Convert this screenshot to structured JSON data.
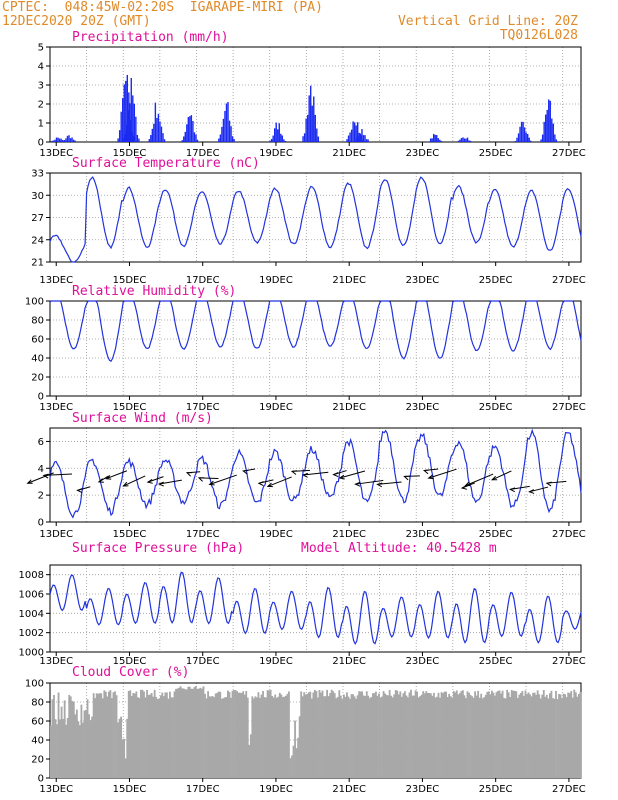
{
  "header": {
    "line1_left": "CPTEC:  048:45W-02:20S  IGARAPE-MIRI (PA)",
    "line2_left": "12DEC2020 20Z (GMT)",
    "line1_right": "Vertical Grid Line: 20Z",
    "line2_right": "TQ0126L028"
  },
  "colors": {
    "header": "#e08a2a",
    "title": "#e0109a",
    "line": "#2233dd",
    "bar": "#1a2af0",
    "cloud": "#a8a8a8"
  },
  "x_tick_labels": [
    "13DEC",
    "15DEC",
    "17DEC",
    "19DEC",
    "21DEC",
    "23DEC",
    "25DEC",
    "27DEC"
  ],
  "chart_data": [
    {
      "type": "bar",
      "title": "Precipitation (mm/h)",
      "ylim": [
        0,
        5
      ],
      "yticks": [
        0,
        1,
        2,
        3,
        4,
        5
      ],
      "grid": true,
      "x_unit": "days from 12DEC 20Z (hourly)",
      "values": []
    },
    {
      "type": "line",
      "title": "Surface Temperature (nC)",
      "ylim": [
        21,
        33
      ],
      "yticks": [
        21,
        24,
        27,
        30,
        33
      ],
      "grid": true,
      "daily_max": [
        24.5,
        32.4,
        31.0,
        30.8,
        30.5,
        30.6,
        30.9,
        31.1,
        31.6,
        32.2,
        32.4,
        31.2,
        30.7,
        30.6,
        30.9
      ],
      "daily_min": [
        21.0,
        23.0,
        23.0,
        23.2,
        23.4,
        23.6,
        23.4,
        23.0,
        22.9,
        23.2,
        23.5,
        23.6,
        23.0,
        22.5,
        22.8
      ]
    },
    {
      "type": "line",
      "title": "Relative Humidity (%)",
      "ylim": [
        0,
        100
      ],
      "yticks": [
        0,
        20,
        40,
        60,
        80,
        100
      ],
      "grid": true,
      "daily_max": [
        100,
        100,
        100,
        100,
        100,
        100,
        100,
        100,
        100,
        100,
        100,
        100,
        98,
        100,
        100
      ],
      "daily_min": [
        50,
        37,
        50,
        50,
        52,
        50,
        52,
        52,
        50,
        40,
        40,
        48,
        48,
        50,
        45
      ]
    },
    {
      "type": "line",
      "title": "Surface Wind (m/s)",
      "ylim": [
        0,
        7
      ],
      "yticks": [
        0,
        2,
        4,
        6
      ],
      "grid": true,
      "daily_max": [
        4.3,
        4.6,
        4.5,
        4.6,
        4.7,
        5.1,
        5.2,
        5.4,
        6.0,
        6.8,
        6.4,
        6.0,
        5.6,
        6.6,
        6.6
      ],
      "daily_min": [
        0.6,
        0.8,
        1.3,
        1.5,
        1.2,
        1.4,
        1.6,
        1.8,
        1.4,
        1.6,
        1.9,
        1.5,
        1.2,
        0.8,
        1.2
      ]
    },
    {
      "type": "line",
      "title": "Surface Pressure (hPa)",
      "annotation": "Model Altitude: 40.5428 m",
      "ylim": [
        1000,
        1009
      ],
      "yticks": [
        1000,
        1002,
        1004,
        1006,
        1008
      ],
      "grid": true,
      "daily_max": [
        1008.0,
        1006.6,
        1007.2,
        1008.3,
        1007.7,
        1006.6,
        1006.3,
        1006.7,
        1006.3,
        1005.7,
        1006.3,
        1006.6,
        1006.2,
        1005.8,
        1005.0
      ],
      "daily_min": [
        1003.8,
        1002.3,
        1002.4,
        1002.3,
        1002.3,
        1001.3,
        1001.8,
        1000.8,
        1000.1,
        1001.0,
        1000.8,
        1000.2,
        1001.0,
        1000.3,
        1002.0
      ]
    },
    {
      "type": "bar",
      "title": "Cloud Cover (%)",
      "ylim": [
        0,
        100
      ],
      "yticks": [
        0,
        20,
        40,
        60,
        80,
        100
      ],
      "grid": true,
      "values": []
    }
  ]
}
